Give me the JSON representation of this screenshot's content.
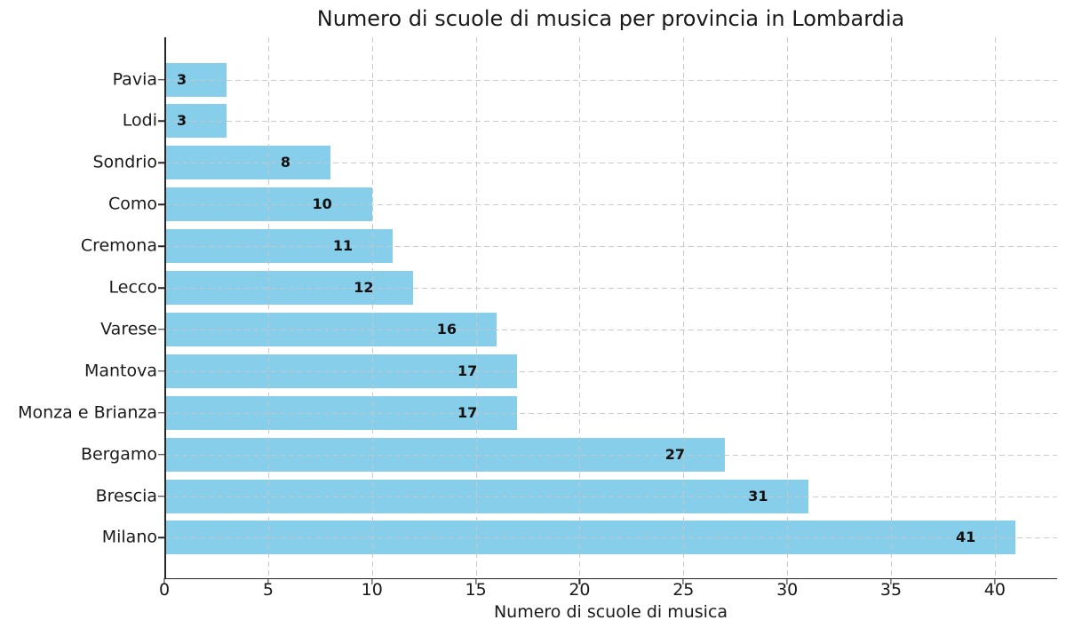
{
  "chart_data": {
    "type": "bar",
    "orientation": "horizontal",
    "title": "Numero di scuole di musica per provincia in Lombardia",
    "xlabel": "Numero di scuole di musica",
    "ylabel": "",
    "categories": [
      "Pavia",
      "Lodi",
      "Sondrio",
      "Como",
      "Cremona",
      "Lecco",
      "Varese",
      "Mantova",
      "Monza e Brianza",
      "Bergamo",
      "Brescia",
      "Milano"
    ],
    "values": [
      3,
      3,
      8,
      10,
      11,
      12,
      16,
      17,
      17,
      27,
      31,
      41
    ],
    "value_labels_shown": true,
    "xticks": [
      0,
      5,
      10,
      15,
      20,
      25,
      30,
      35,
      40
    ],
    "xlim": [
      0,
      43
    ],
    "grid": true,
    "grid_style": "dashed",
    "grid_over_bars": true,
    "legend": "none",
    "colors": {
      "bar": "#87CEEB",
      "grid": "#c7c7c7",
      "axis": "#262626",
      "text": "#1a1a1a",
      "value_label": "#111111",
      "background": "#ffffff"
    }
  }
}
